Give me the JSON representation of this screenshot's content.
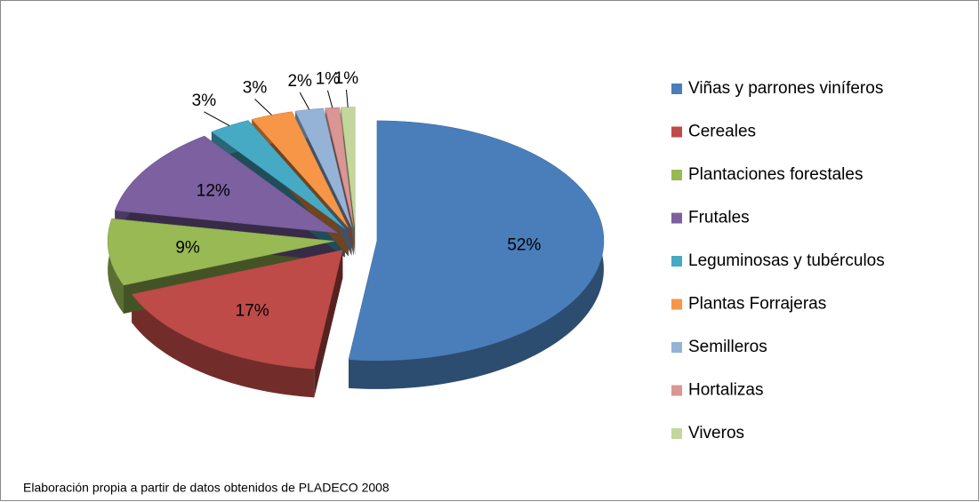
{
  "chart_data": {
    "type": "pie3d",
    "categories": [
      "Viñas y parrones viníferos",
      "Cereales",
      "Plantaciones forestales",
      "Frutales",
      "Leguminosas y tubérculos",
      "Plantas Forrajeras",
      "Semilleros",
      "Hortalizas",
      "Viveros"
    ],
    "values": [
      52,
      17,
      9,
      12,
      3,
      3,
      2,
      1,
      1
    ],
    "value_labels": [
      "52%",
      "17%",
      "9%",
      "12%",
      "3%",
      "3%",
      "2%",
      "1%",
      "1%"
    ],
    "colors": [
      "#4a7ebb",
      "#be4b48",
      "#98b954",
      "#7d60a0",
      "#46aac5",
      "#f79646",
      "#95b3d7",
      "#d99694",
      "#c3d69b"
    ],
    "legend": "right",
    "note": "Elaboración propia a partir de datos obtenidos de PLADECO 2008"
  }
}
